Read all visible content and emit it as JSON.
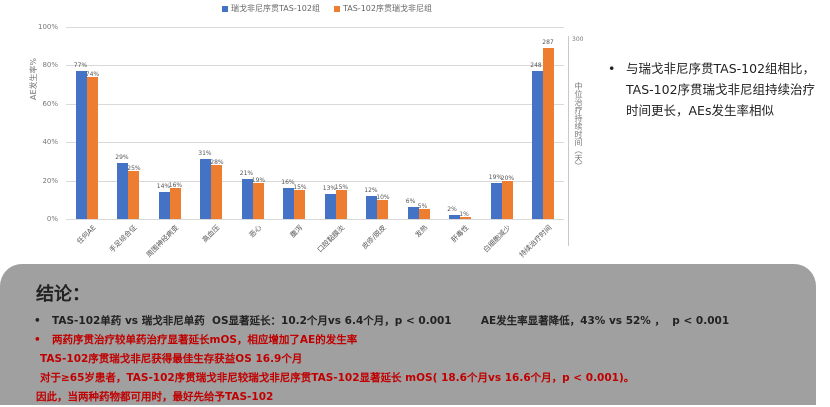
{
  "chart_data": {
    "type": "bar",
    "title": "",
    "ylabel": "AE发生率%",
    "y2label": "中位治疗持续时间（天）",
    "ylim": [
      0,
      100
    ],
    "y2lim": [
      0,
      300
    ],
    "yticks": [
      "0%",
      "20%",
      "40%",
      "60%",
      "80%",
      "100%"
    ],
    "y2ticks": [
      "300"
    ],
    "grid": true,
    "legend_position": "top",
    "categories": [
      "任何AE",
      "手足综合征",
      "周围神经病变",
      "高血压",
      "恶心",
      "腹泻",
      "口腔黏膜炎",
      "皮疹/脱皮",
      "发热",
      "肝毒性",
      "白细胞减少",
      "持续治疗时间"
    ],
    "series": [
      {
        "name": "瑞戈非尼序贯TAS-102组",
        "color": "#4472c4",
        "values": [
          77,
          29,
          14,
          31,
          21,
          16,
          13,
          12,
          6,
          2,
          19,
          248
        ],
        "labels": [
          "77%",
          "29%",
          "14%",
          "31%",
          "21%",
          "16%",
          "13%",
          "12%",
          "6%",
          "2%",
          "19%",
          "248"
        ]
      },
      {
        "name": "TAS-102序贯瑞戈非尼组",
        "color": "#ed7d31",
        "values": [
          74,
          25,
          16,
          28,
          19,
          15,
          15,
          10,
          5,
          1,
          20,
          287
        ],
        "labels": [
          "74%",
          "25%",
          "16%",
          "28%",
          "19%",
          "15%",
          "15%",
          "10%",
          "5%",
          "1%",
          "20%",
          "287"
        ]
      }
    ],
    "note": "最后一组（持续治疗时间）使用右侧次坐标轴（天）"
  },
  "side_note": {
    "bullet": "•",
    "text": "与瑞戈非尼序贯TAS-102组相比，TAS-102序贯瑞戈非尼组持续治疗时间更长，AEs发生率相似"
  },
  "conclusion": {
    "title": "结论：",
    "lines": [
      {
        "bullet": "•",
        "text": "TAS-102单药 vs 瑞戈非尼单药  OS显著延长：10.2个月vs 6.4个月，p < 0.001        AE发生率显著降低，43% vs 52% ，  p < 0.001",
        "color": "dark"
      },
      {
        "bullet": "•",
        "text": "两药序贯治疗较单药治疗显著延长mOS，相应增加了AE的发生率",
        "color": "red"
      },
      {
        "bullet": "",
        "text": "TAS-102序贯瑞戈非尼获得最佳生存获益OS 16.9个月",
        "color": "red"
      },
      {
        "bullet": "",
        "text": "对于≥65岁患者，TAS-102序贯瑞戈非尼较瑞戈非尼序贯TAS-102显著延长 mOS( 18.6个月vs 16.6个月，p < 0.001)。",
        "color": "red"
      },
      {
        "bullet": "",
        "text": "因此，当两种药物都可用时，最好先给予TAS-102",
        "color": "red"
      }
    ]
  }
}
